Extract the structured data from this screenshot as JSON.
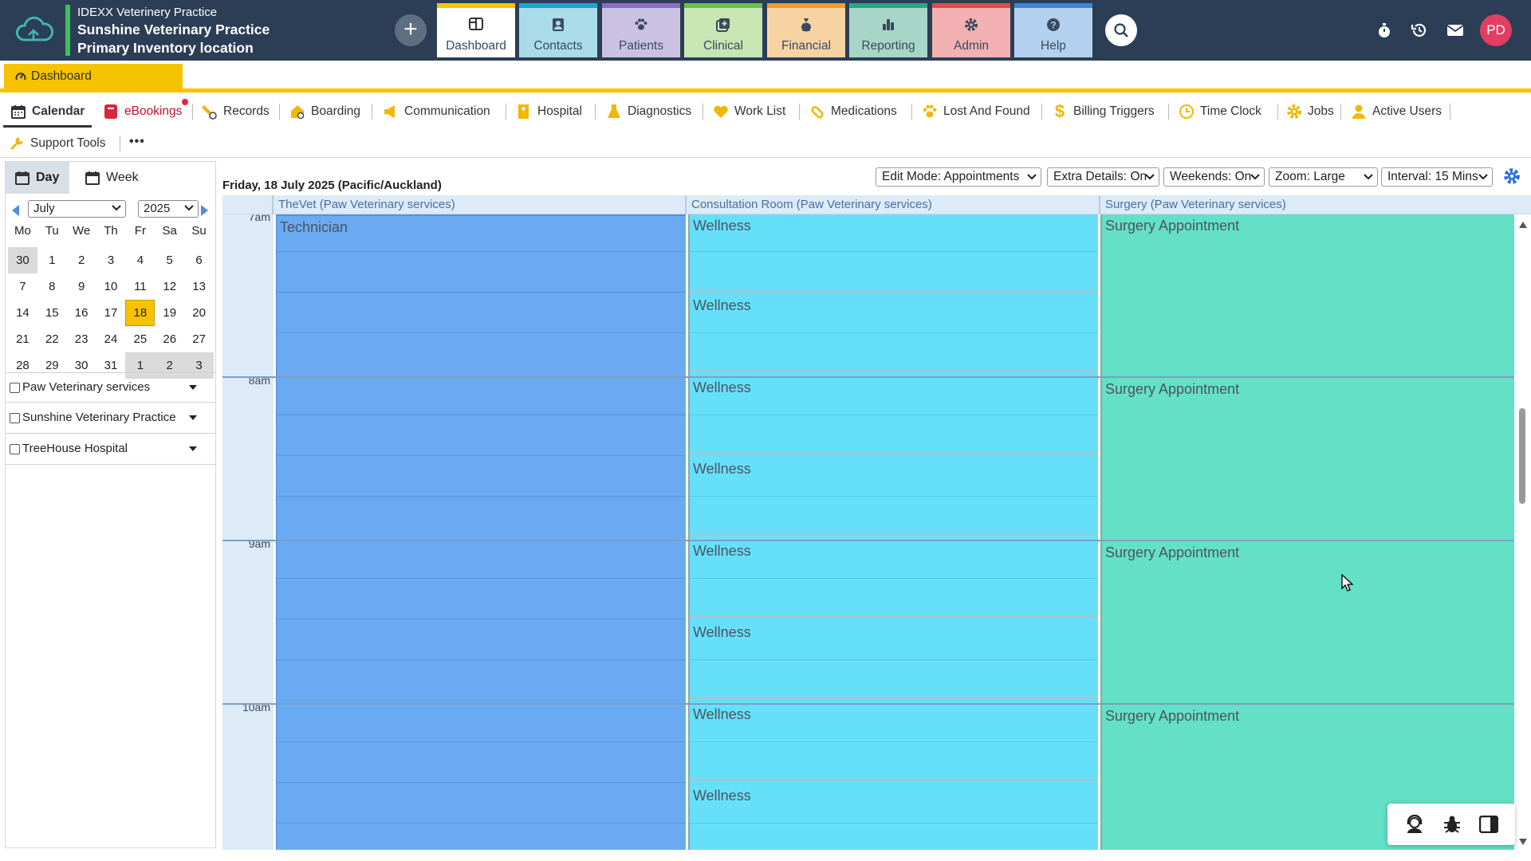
{
  "brand": {
    "org_line": "IDEXX Veterinery Practice",
    "practice": "Sunshine Veterinary Practice",
    "location": "Primary Inventory location"
  },
  "main_nav": [
    {
      "label": "Dashboard",
      "icon": "dashboard-icon",
      "color": "#f7c300",
      "bg": "#ffffff"
    },
    {
      "label": "Contacts",
      "icon": "contacts-icon",
      "color": "#1aa6cf",
      "bg": "#a9dbe8"
    },
    {
      "label": "Patients",
      "icon": "paw-icon",
      "color": "#8a6fc2",
      "bg": "#cbc2e3"
    },
    {
      "label": "Clinical",
      "icon": "clinical-icon",
      "color": "#6cc04a",
      "bg": "#c7e6b4"
    },
    {
      "label": "Financial",
      "icon": "money-bag-icon",
      "color": "#f29b2e",
      "bg": "#f7d3a4"
    },
    {
      "label": "Reporting",
      "icon": "bar-chart-icon",
      "color": "#2ea38a",
      "bg": "#a7d6c9"
    },
    {
      "label": "Admin",
      "icon": "gear-icon",
      "color": "#e24a4a",
      "bg": "#f4b1b3"
    },
    {
      "label": "Help",
      "icon": "help-icon",
      "color": "#3c86d8",
      "bg": "#b3d1ee"
    }
  ],
  "user": {
    "initials": "PD"
  },
  "tabs": {
    "active": "Dashboard"
  },
  "toolbar": [
    {
      "label": "Calendar",
      "icon": "calendar-icon"
    },
    {
      "label": "eBookings",
      "icon": "ebookings-icon"
    },
    {
      "label": "Records",
      "icon": "records-icon"
    },
    {
      "label": "Boarding",
      "icon": "boarding-icon"
    },
    {
      "label": "Communication",
      "icon": "megaphone-icon"
    },
    {
      "label": "Hospital",
      "icon": "hospital-icon"
    },
    {
      "label": "Diagnostics",
      "icon": "flask-icon"
    },
    {
      "label": "Work List",
      "icon": "heart-icon"
    },
    {
      "label": "Medications",
      "icon": "pill-icon"
    },
    {
      "label": "Lost And Found",
      "icon": "paw-icon"
    },
    {
      "label": "Billing Triggers",
      "icon": "dollar-icon"
    },
    {
      "label": "Time Clock",
      "icon": "clock-icon"
    },
    {
      "label": "Jobs",
      "icon": "gear-icon"
    },
    {
      "label": "Active Users",
      "icon": "user-icon"
    },
    {
      "label": "Support Tools",
      "icon": "wrench-icon"
    }
  ],
  "toolbar_more": "•••",
  "view_tabs": {
    "day": "Day",
    "week": "Week"
  },
  "mini_calendar": {
    "month": "July",
    "year": "2025",
    "weekdays": [
      "Mo",
      "Tu",
      "We",
      "Th",
      "Fr",
      "Sa",
      "Su"
    ],
    "weeks": [
      [
        "30",
        "1",
        "2",
        "3",
        "4",
        "5",
        "6"
      ],
      [
        "7",
        "8",
        "9",
        "10",
        "11",
        "12",
        "13"
      ],
      [
        "14",
        "15",
        "16",
        "17",
        "18",
        "19",
        "20"
      ],
      [
        "21",
        "22",
        "23",
        "24",
        "25",
        "26",
        "27"
      ],
      [
        "28",
        "29",
        "30",
        "31",
        "1",
        "2",
        "3"
      ]
    ],
    "selected": "18"
  },
  "groups": [
    {
      "label": "Paw Veterinary services"
    },
    {
      "label": "Sunshine Veterinary Practice"
    },
    {
      "label": "TreeHouse Hospital"
    }
  ],
  "schedule": {
    "date_title": "Friday, 18 July 2025 (Pacific/Auckland)",
    "controls": {
      "edit_mode": "Edit Mode: Appointments",
      "extra_details": "Extra Details: On",
      "weekends": "Weekends: On",
      "zoom": "Zoom: Large",
      "interval": "Interval: 15 Mins"
    },
    "columns": [
      {
        "name": "TheVet (Paw Veterinary services)",
        "color": "#6aaaf3"
      },
      {
        "name": "Consultation Room (Paw Veterinary services)",
        "color": "#66e0fa"
      },
      {
        "name": "Surgery (Paw Veterinary services)",
        "color": "#64e0c6"
      }
    ],
    "hours": [
      "7am",
      "8am",
      "9am",
      "10am"
    ],
    "appointments": {
      "technician": "Technician",
      "wellness": "Wellness",
      "surgery": "Surgery Appointment"
    }
  }
}
